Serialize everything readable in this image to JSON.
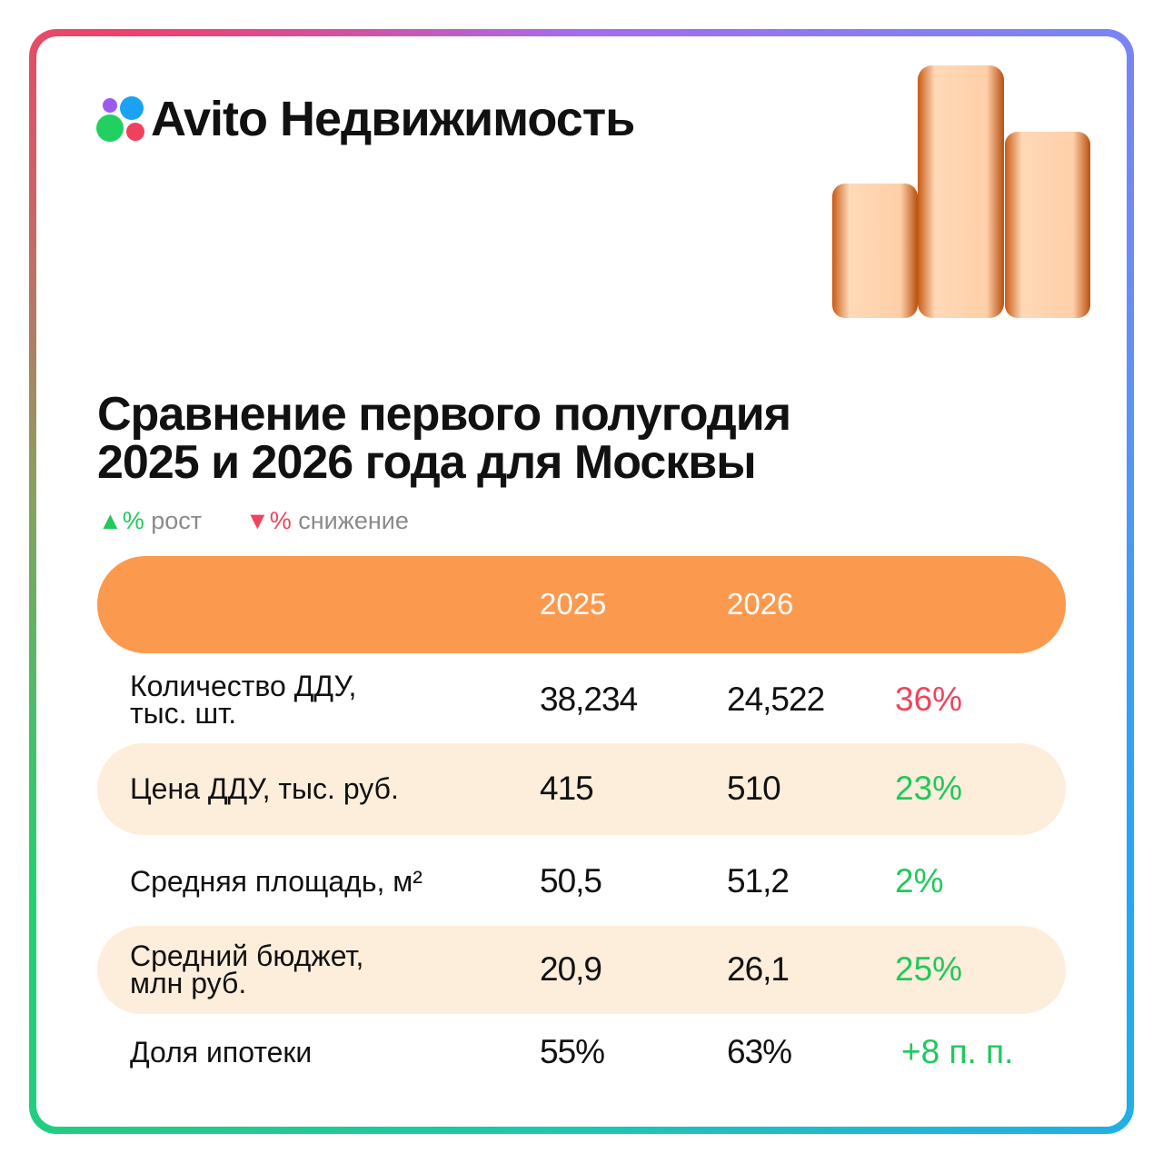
{
  "brand": "Avito Недвижимость",
  "title": [
    "Сравнение первого полугодия",
    "2025 и 2026 года для Москвы"
  ],
  "legend": [
    {
      "symbol": "%",
      "label": "рост"
    },
    {
      "symbol": "%",
      "label": "снижение"
    }
  ],
  "table": {
    "header": [
      "2025",
      "2026"
    ],
    "rows": [
      [
        "Количество ДДУ, тыс. шт.",
        "38,234",
        "24,522",
        "36%"
      ],
      [
        "Цена ДДУ, тыс. руб.",
        "415",
        "510",
        "23%"
      ],
      [
        "Средняя площадь, м²",
        "50,5",
        "51,2",
        "2%"
      ],
      [
        "Средний бюджет, млн руб.",
        "20,9",
        "26,1",
        "25%"
      ],
      [
        "Доля ипотеки",
        "55%",
        "63%",
        "+8 п. п."
      ]
    ]
  }
}
